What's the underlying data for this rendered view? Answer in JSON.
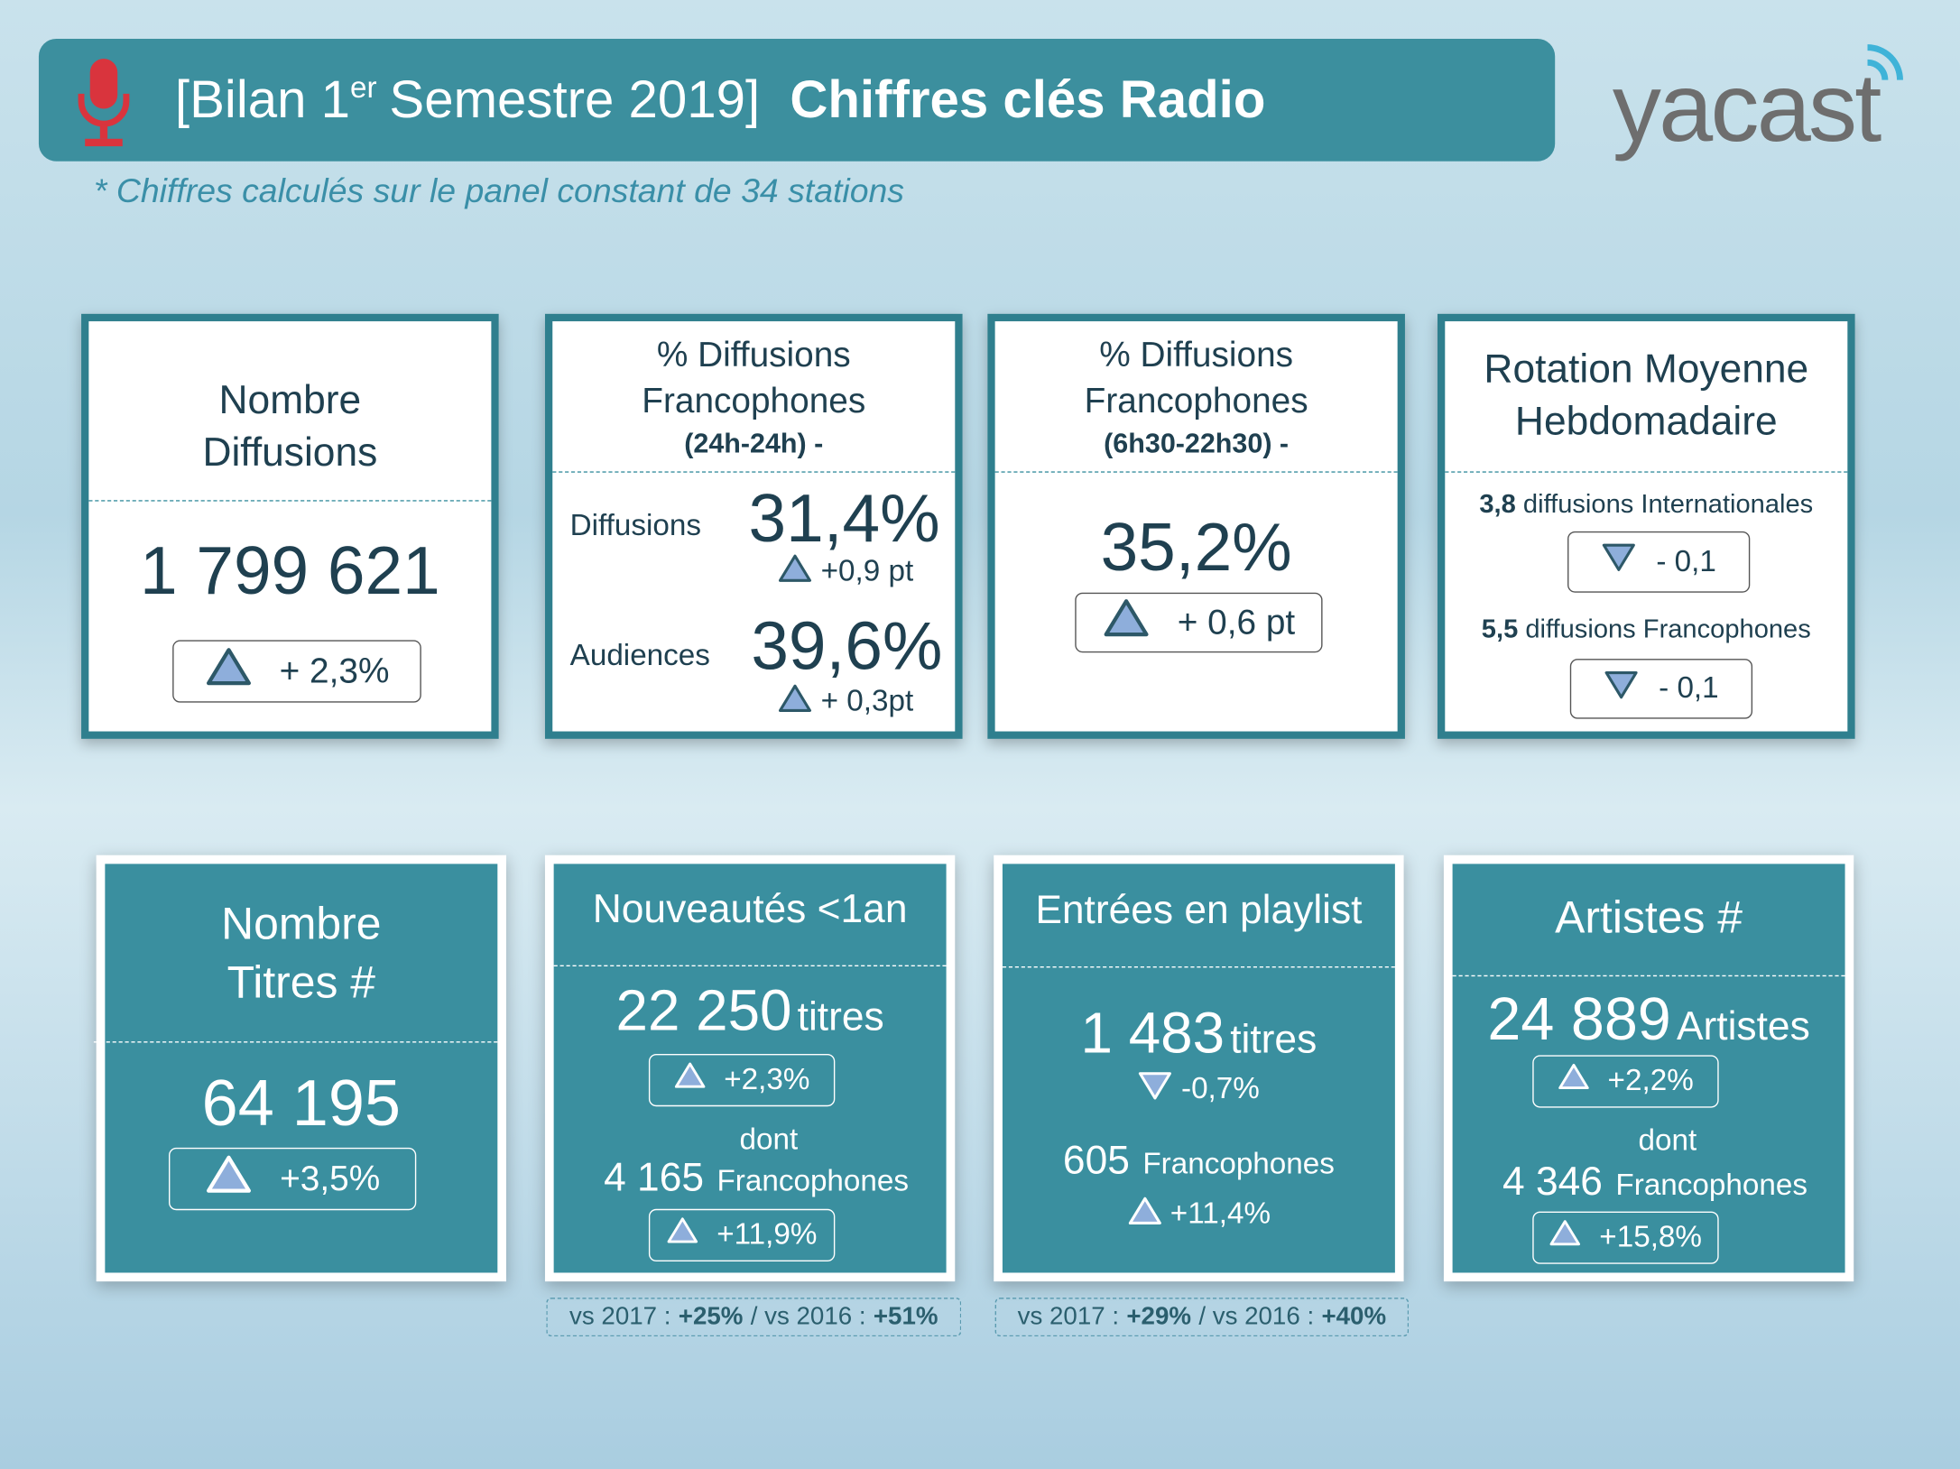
{
  "header": {
    "title_start": "[Bilan 1",
    "title_sup": "er",
    "title_end": "Semestre 2019]",
    "title_bold": "Chiffres clés Radio",
    "logo": "yacast",
    "note": "* Chiffres calculés sur le panel constant de 34 stations"
  },
  "top_cards": [
    {
      "title": [
        "Nombre",
        "Diffusions"
      ],
      "value": "1 799 621",
      "change": "+ 2,3%"
    },
    {
      "title": [
        "% Diffusions",
        "Francophones"
      ],
      "subtitle": "(24h-24h) -",
      "rows": [
        {
          "label": "Diffusions",
          "value": "31,4%",
          "change": "+0,9 pt"
        },
        {
          "label": "Audiences",
          "value": "39,6%",
          "change": "+ 0,3pt"
        }
      ]
    },
    {
      "title": [
        "% Diffusions",
        "Francophones"
      ],
      "subtitle": "(6h30-22h30) -",
      "value": "35,2%",
      "change": "+ 0,6 pt"
    },
    {
      "title": [
        "Rotation Moyenne",
        "Hebdomadaire"
      ],
      "rows": [
        {
          "number": "3,8",
          "label": "diffusions Internationales",
          "change": "- 0,1"
        },
        {
          "number": "5,5",
          "label": "diffusions Francophones",
          "change": "- 0,1"
        }
      ]
    }
  ],
  "bottom_cards": [
    {
      "title": [
        "Nombre",
        "Titres #"
      ],
      "value": "64 195",
      "change": "+3,5%"
    },
    {
      "title": [
        "Nouveautés <1an"
      ],
      "value": "22 250",
      "unit": "titres",
      "change": "+2,3%",
      "sub_prefix": "dont",
      "sub_value": "4 165",
      "sub_unit": "Francophones",
      "sub_change": "+11,9%",
      "footnote": [
        "vs 2017 :",
        "+25%",
        "/ vs 2016 :",
        "+51%"
      ]
    },
    {
      "title": [
        "Entrées en playlist"
      ],
      "value": "1 483",
      "unit": "titres",
      "change": "-0,7%",
      "sub_value": "605",
      "sub_unit": "Francophones",
      "sub_change": "+11,4%",
      "footnote": [
        "vs 2017 :",
        "+29%",
        "/ vs 2016 :",
        "+40%"
      ]
    },
    {
      "title": [
        "Artistes #"
      ],
      "value": "24 889",
      "unit": "Artistes",
      "change": "+2,2%",
      "sub_prefix": "dont",
      "sub_value": "4 346",
      "sub_unit": "Francophones",
      "sub_change": "+15,8%"
    }
  ]
}
